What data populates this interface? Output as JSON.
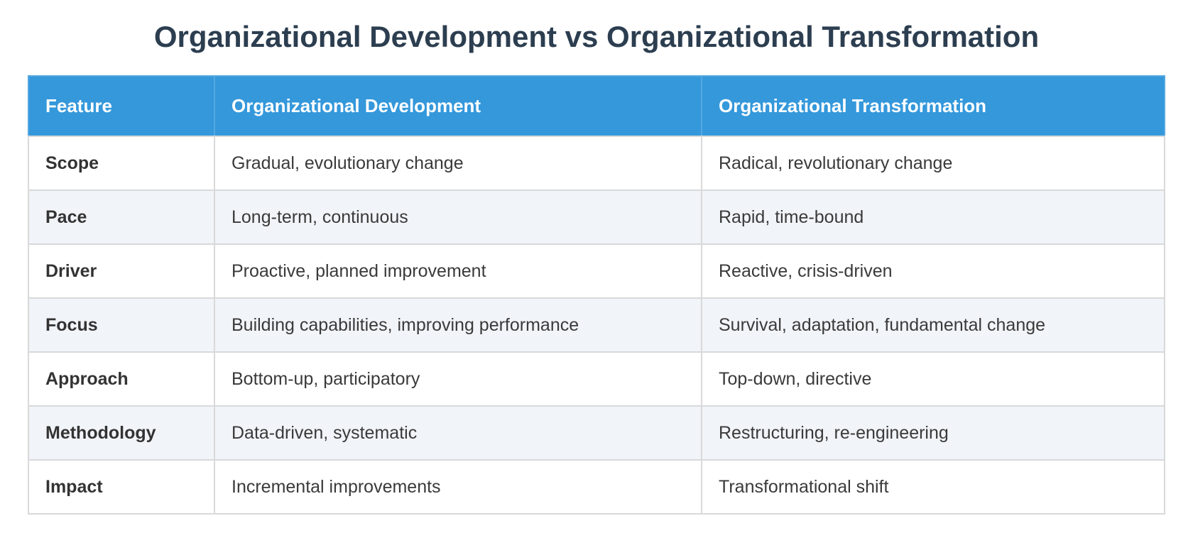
{
  "chart_data": {
    "type": "table",
    "title": "Organizational Development vs Organizational Transformation",
    "columns": [
      "Feature",
      "Organizational Development",
      "Organizational Transformation"
    ],
    "rows": [
      [
        "Scope",
        "Gradual, evolutionary change",
        "Radical, revolutionary change"
      ],
      [
        "Pace",
        "Long-term, continuous",
        "Rapid, time-bound"
      ],
      [
        "Driver",
        "Proactive, planned improvement",
        "Reactive, crisis-driven"
      ],
      [
        "Focus",
        "Building capabilities, improving performance",
        "Survival, adaptation, fundamental change"
      ],
      [
        "Approach",
        "Bottom-up, participatory",
        "Top-down, directive"
      ],
      [
        "Methodology",
        "Data-driven, systematic",
        "Restructuring, re-engineering"
      ],
      [
        "Impact",
        "Incremental improvements",
        "Transformational shift"
      ]
    ],
    "layout_hints": {
      "striped_rows": "even data rows (Pace, Focus, Methodology) are shaded",
      "header_position": "top row"
    }
  },
  "colors": {
    "title_text": "#2c3e50",
    "header_background": "#3498db",
    "header_text": "#ffffff",
    "header_separator": "#56a8e0",
    "row_stripe": "#f1f4f8",
    "cell_border": "#d9d9d9",
    "feature_text": "#333333",
    "body_text": "#3a3a3a",
    "page_background": "#ffffff"
  }
}
